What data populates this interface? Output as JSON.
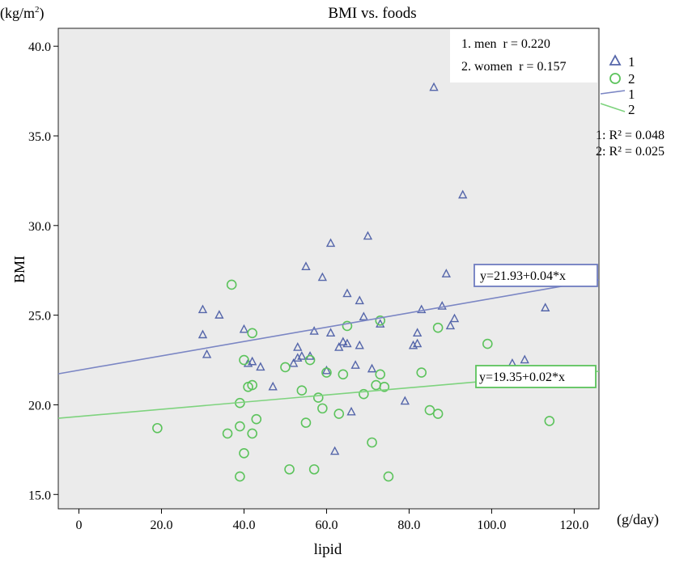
{
  "chart_data": {
    "type": "scatter",
    "title": "BMI vs. foods",
    "xlabel": "lipid",
    "xunit": "(g/day)",
    "ylabel": "BMI",
    "yunit_base": "(kg/m",
    "yunit_sup": "2",
    "yunit_close": ")",
    "xlim": [
      -5,
      126
    ],
    "ylim": [
      14.2,
      41.0
    ],
    "xticks": [
      0,
      20,
      40,
      60,
      80,
      100,
      120
    ],
    "xtick_labels": [
      "0",
      "20.0",
      "40.0",
      "60.0",
      "80.0",
      "100.0",
      "120.0"
    ],
    "yticks": [
      15,
      20,
      25,
      30,
      35,
      40
    ],
    "ytick_labels": [
      "15.0",
      "20.0",
      "25.0",
      "30.0",
      "35.0",
      "40.0"
    ],
    "grid": false,
    "background": "#ebebeb",
    "correlations": [
      "1. men  r = 0.220",
      "2. women  r = 0.157"
    ],
    "legend": {
      "placement": "right",
      "entries": [
        "1",
        "2",
        "1",
        "2"
      ],
      "r_squared": [
        "1: R² = 0.048",
        "2: R² = 0.025"
      ]
    },
    "series": [
      {
        "name": "1",
        "marker": "triangle",
        "color": "#5566aa",
        "points": [
          [
            30,
            25.3
          ],
          [
            30,
            23.9
          ],
          [
            31,
            22.8
          ],
          [
            34,
            25.0
          ],
          [
            40,
            24.2
          ],
          [
            41,
            22.3
          ],
          [
            42,
            22.4
          ],
          [
            44,
            22.1
          ],
          [
            47,
            21.0
          ],
          [
            52,
            22.3
          ],
          [
            53,
            22.6
          ],
          [
            53,
            23.2
          ],
          [
            54,
            22.7
          ],
          [
            55,
            27.7
          ],
          [
            56,
            22.7
          ],
          [
            57,
            24.1
          ],
          [
            59,
            27.1
          ],
          [
            60,
            21.9
          ],
          [
            61,
            24.0
          ],
          [
            61,
            29.0
          ],
          [
            62,
            17.4
          ],
          [
            63,
            23.2
          ],
          [
            64,
            23.5
          ],
          [
            65,
            26.2
          ],
          [
            65,
            23.4
          ],
          [
            66,
            19.6
          ],
          [
            67,
            22.2
          ],
          [
            68,
            25.8
          ],
          [
            68,
            23.3
          ],
          [
            69,
            24.9
          ],
          [
            70,
            29.4
          ],
          [
            71,
            22.0
          ],
          [
            73,
            24.5
          ],
          [
            79,
            20.2
          ],
          [
            81,
            23.3
          ],
          [
            82,
            24.0
          ],
          [
            82,
            23.4
          ],
          [
            83,
            25.3
          ],
          [
            86,
            37.7
          ],
          [
            88,
            25.5
          ],
          [
            89,
            27.3
          ],
          [
            90,
            24.4
          ],
          [
            91,
            24.8
          ],
          [
            93,
            31.7
          ],
          [
            105,
            22.3
          ],
          [
            108,
            22.5
          ],
          [
            113,
            25.4
          ]
        ],
        "fit": {
          "intercept": 21.93,
          "slope": 0.04,
          "label": "y=21.93+0.04*x",
          "color": "#7b86c4"
        }
      },
      {
        "name": "2",
        "marker": "circle",
        "color": "#5cc35c",
        "points": [
          [
            19,
            18.7
          ],
          [
            36,
            18.4
          ],
          [
            37,
            26.7
          ],
          [
            39,
            16.0
          ],
          [
            39,
            20.1
          ],
          [
            39,
            18.8
          ],
          [
            40,
            22.5
          ],
          [
            40,
            17.3
          ],
          [
            41,
            21.0
          ],
          [
            42,
            21.1
          ],
          [
            42,
            24.0
          ],
          [
            42,
            18.4
          ],
          [
            43,
            19.2
          ],
          [
            50,
            22.1
          ],
          [
            51,
            16.4
          ],
          [
            54,
            20.8
          ],
          [
            55,
            19.0
          ],
          [
            56,
            22.5
          ],
          [
            57,
            16.4
          ],
          [
            58,
            20.4
          ],
          [
            59,
            19.8
          ],
          [
            60,
            21.8
          ],
          [
            63,
            19.5
          ],
          [
            64,
            21.7
          ],
          [
            65,
            24.4
          ],
          [
            69,
            20.6
          ],
          [
            71,
            17.9
          ],
          [
            72,
            21.1
          ],
          [
            73,
            21.7
          ],
          [
            73,
            24.7
          ],
          [
            74,
            21.0
          ],
          [
            75,
            16.0
          ],
          [
            83,
            21.8
          ],
          [
            85,
            19.7
          ],
          [
            87,
            19.5
          ],
          [
            87,
            24.3
          ],
          [
            99,
            23.4
          ],
          [
            114,
            19.1
          ]
        ],
        "fit": {
          "intercept": 19.35,
          "slope": 0.02,
          "label": "y=19.35+0.02*x",
          "color": "#7ed37e"
        }
      }
    ]
  }
}
